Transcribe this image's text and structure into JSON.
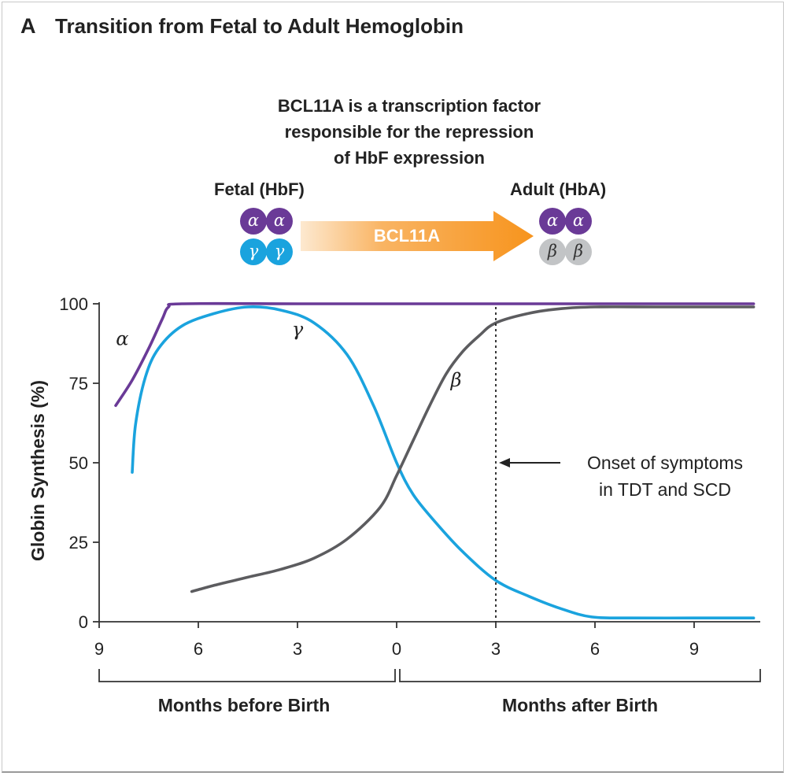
{
  "header": {
    "panel_letter": "A",
    "title": "Transition from Fetal to Adult Hemoglobin"
  },
  "description": {
    "lines": [
      "BCL11A is a transcription factor",
      "responsible for the repression",
      "of HbF expression"
    ]
  },
  "transition": {
    "fetal_label": "Fetal (HbF)",
    "adult_label": "Adult (HbA)",
    "arrow_label": "BCL11A",
    "fetal_subunits": [
      "α",
      "α",
      "γ",
      "γ"
    ],
    "adult_subunits": [
      "α",
      "α",
      "β",
      "β"
    ],
    "colors": {
      "alpha": "#6a3a97",
      "gamma": "#1aa3de",
      "beta": "#c2c4c6",
      "arrow": "#f7941d"
    }
  },
  "chart_data": {
    "type": "line",
    "title": "Transition from Fetal to Adult Hemoglobin",
    "ylabel": "Globin Synthesis (%)",
    "xlabel": "",
    "ylim": [
      0,
      100
    ],
    "xlim": [
      -9,
      11
    ],
    "y_ticks": [
      0,
      25,
      50,
      75,
      100
    ],
    "x_ticks": [
      -9,
      -6,
      -3,
      0,
      3,
      6,
      9
    ],
    "x_tick_labels": [
      "9",
      "6",
      "3",
      "0",
      "3",
      "6",
      "9"
    ],
    "grid": false,
    "series": [
      {
        "name": "α",
        "color": "#6a3a97",
        "x": [
          -8.5,
          -8.0,
          -7.5,
          -7.1,
          -6.9,
          -6.5,
          -3,
          0,
          3,
          6,
          9,
          10.8
        ],
        "y": [
          68,
          76,
          86,
          95,
          99,
          100,
          100,
          100,
          100,
          100,
          100,
          100
        ]
      },
      {
        "name": "γ",
        "color": "#1aa3de",
        "x": [
          -8.0,
          -7.9,
          -7.6,
          -7.2,
          -6.5,
          -5.5,
          -4.5,
          -3.5,
          -2.5,
          -1.5,
          -0.7,
          0,
          0.5,
          1.2,
          2,
          3,
          4,
          5,
          5.9,
          7,
          9,
          10.8
        ],
        "y": [
          47,
          62,
          77,
          86,
          93,
          97,
          99,
          98,
          94,
          84,
          68,
          50,
          40,
          31,
          22,
          13,
          8,
          4,
          1.5,
          1.2,
          1.2,
          1.2
        ]
      },
      {
        "name": "β",
        "color": "#5c5c5f",
        "x": [
          -6.2,
          -5.5,
          -4.5,
          -3.5,
          -2.5,
          -1.5,
          -0.5,
          0,
          0.5,
          1.0,
          1.5,
          2,
          2.5,
          3,
          4,
          5,
          6,
          8,
          10.8
        ],
        "y": [
          9.5,
          11.5,
          14,
          16.5,
          20,
          26,
          36,
          46,
          57,
          68,
          78,
          85,
          90,
          94,
          97,
          98.5,
          99,
          99,
          99
        ]
      }
    ],
    "annotations": {
      "onset_x": 3,
      "onset_text_lines": [
        "Onset of symptoms",
        "in TDT and SCD"
      ],
      "series_labels": [
        {
          "text": "α",
          "x": -8.3,
          "y": 87
        },
        {
          "text": "γ",
          "x": -3.0,
          "y": 90
        },
        {
          "text": "β",
          "x": 1.8,
          "y": 74
        }
      ]
    },
    "brackets": [
      {
        "label": "Months before Birth",
        "from": -9,
        "to": 0
      },
      {
        "label": "Months after Birth",
        "from": 0,
        "to": 11
      }
    ]
  }
}
